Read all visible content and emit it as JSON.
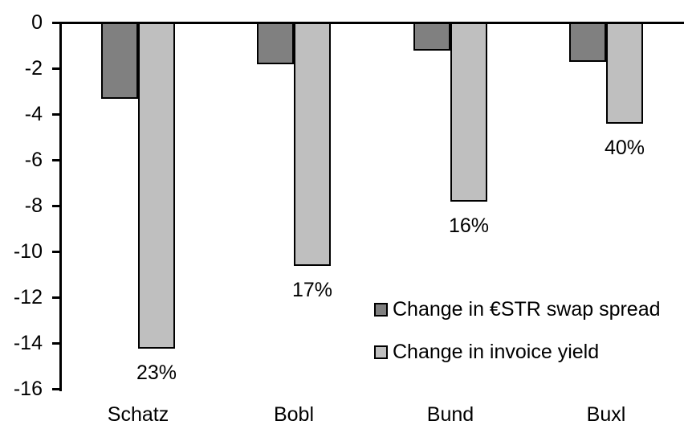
{
  "chart_data": {
    "type": "bar",
    "title": "",
    "xlabel": "",
    "ylabel": "",
    "categories": [
      "Schatz",
      "Bobl",
      "Bund",
      "Buxl"
    ],
    "series": [
      {
        "name": "Change in €STR swap spread",
        "color": "#808080",
        "values": [
          -3.3,
          -1.8,
          -1.2,
          -1.7
        ]
      },
      {
        "name": "Change in invoice yield",
        "color": "#bfbfbf",
        "values": [
          -14.2,
          -10.6,
          -7.8,
          -4.4
        ]
      }
    ],
    "data_labels": [
      "23%",
      "17%",
      "16%",
      "40%"
    ],
    "yticks": [
      0,
      -2,
      -4,
      -6,
      -8,
      -10,
      -12,
      -14,
      -16
    ],
    "ylim": [
      -16,
      0
    ],
    "grid": false,
    "legend_position": "inside-right",
    "axis_color": "#000000",
    "bar_outline_color": "#000000",
    "background_color": "#ffffff"
  }
}
